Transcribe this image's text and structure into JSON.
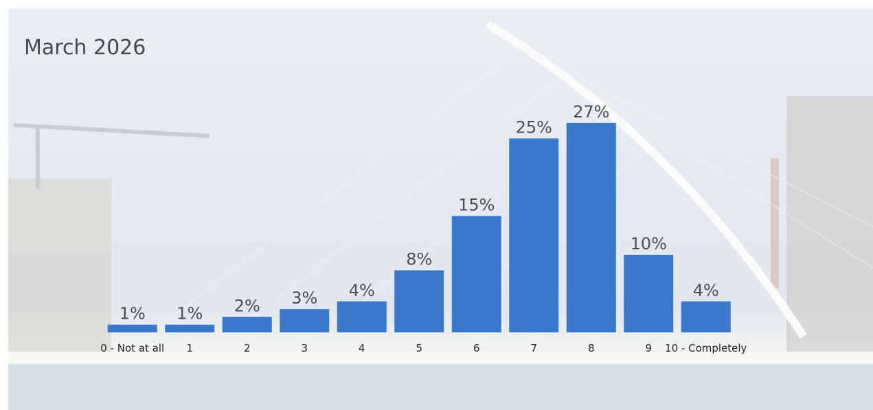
{
  "chart_data": {
    "type": "bar",
    "title": "March 2026",
    "categories": [
      "0 - Not at all",
      "1",
      "2",
      "3",
      "4",
      "5",
      "6",
      "7",
      "8",
      "9",
      "10 - Completely"
    ],
    "values": [
      1,
      1,
      2,
      3,
      4,
      8,
      15,
      25,
      27,
      10,
      4
    ],
    "value_labels": [
      "1%",
      "1%",
      "2%",
      "3%",
      "4%",
      "8%",
      "15%",
      "25%",
      "27%",
      "10%",
      "4%"
    ],
    "color": "#3a78cc"
  }
}
